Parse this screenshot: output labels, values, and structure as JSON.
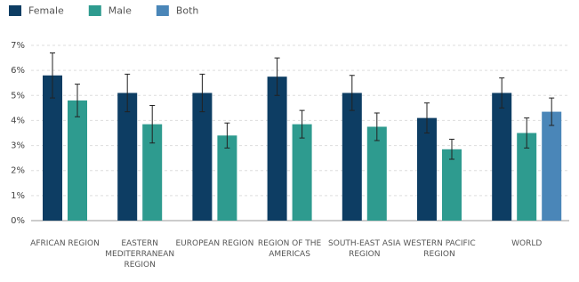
{
  "chart_data": {
    "type": "bar",
    "categories": [
      "AFRICAN REGION",
      "EASTERN MEDITERRANEAN REGION",
      "EUROPEAN REGION",
      "REGION OF THE AMERICAS",
      "SOUTH-EAST ASIA REGION",
      "WESTERN PACIFIC REGION",
      "WORLD"
    ],
    "series": [
      {
        "name": "Female",
        "color": "#0d3d63",
        "values": [
          5.8,
          5.1,
          5.1,
          5.75,
          5.1,
          4.1,
          5.1
        ],
        "errors": [
          0.9,
          0.75,
          0.75,
          0.75,
          0.7,
          0.6,
          0.6
        ]
      },
      {
        "name": "Male",
        "color": "#2e9b8f",
        "values": [
          4.8,
          3.85,
          3.4,
          3.85,
          3.75,
          2.85,
          3.5
        ],
        "errors": [
          0.65,
          0.75,
          0.5,
          0.55,
          0.55,
          0.4,
          0.6
        ]
      },
      {
        "name": "Both",
        "color": "#4a86b8",
        "values": [
          null,
          null,
          null,
          null,
          null,
          null,
          4.35
        ],
        "errors": [
          null,
          null,
          null,
          null,
          null,
          null,
          0.55
        ]
      }
    ],
    "ylim": [
      0,
      7
    ],
    "yticks": [
      {
        "value": 0,
        "label": "0%"
      },
      {
        "value": 1,
        "label": "1%"
      },
      {
        "value": 2,
        "label": "2%"
      },
      {
        "value": 3,
        "label": "3%"
      },
      {
        "value": 4,
        "label": "4%"
      },
      {
        "value": 5,
        "label": "5%"
      },
      {
        "value": 6,
        "label": "6%"
      },
      {
        "value": 7,
        "label": "7%"
      }
    ],
    "grid": true
  }
}
